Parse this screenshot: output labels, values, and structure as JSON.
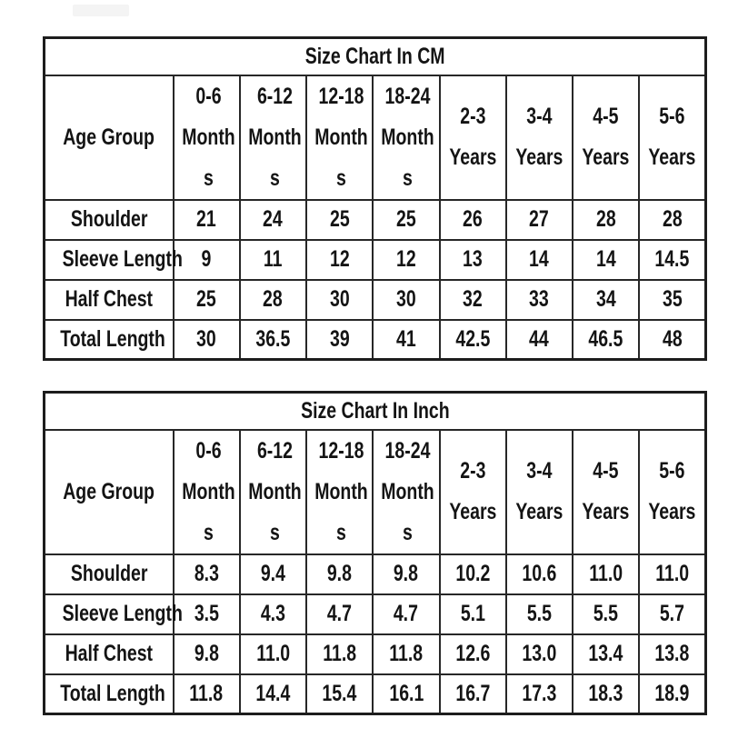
{
  "colors": {
    "background": "#ffffff",
    "table_border": "#1d1d1d",
    "cell_border": "#272727",
    "text": "#141414",
    "watermark": "#f4f4f4"
  },
  "tables": [
    {
      "title": "Size Chart In CM",
      "corner_header": "Age Group",
      "col_headers": [
        "0-6\nMonth\ns",
        "6-12\nMonth\ns",
        "12-18\nMonth\ns",
        "18-24\nMonth\ns",
        "2-3\nYears",
        "3-4\nYears",
        "4-5\nYears",
        "5-6\nYears"
      ],
      "rows": [
        {
          "label": "Shoulder",
          "values": [
            "21",
            "24",
            "25",
            "25",
            "26",
            "27",
            "28",
            "28"
          ]
        },
        {
          "label": "Sleeve Length",
          "values": [
            "9",
            "11",
            "12",
            "12",
            "13",
            "14",
            "14",
            "14.5"
          ]
        },
        {
          "label": "Half Chest",
          "values": [
            "25",
            "28",
            "30",
            "30",
            "32",
            "33",
            "34",
            "35"
          ]
        },
        {
          "label": "Total Length",
          "values": [
            "30",
            "36.5",
            "39",
            "41",
            "42.5",
            "44",
            "46.5",
            "48"
          ]
        }
      ]
    },
    {
      "title": "Size Chart In Inch",
      "corner_header": "Age Group",
      "col_headers": [
        "0-6\nMonth\ns",
        "6-12\nMonth\ns",
        "12-18\nMonth\ns",
        "18-24\nMonth\ns",
        "2-3\nYears",
        "3-4\nYears",
        "4-5\nYears",
        "5-6\nYears"
      ],
      "rows": [
        {
          "label": "Shoulder",
          "values": [
            "8.3",
            "9.4",
            "9.8",
            "9.8",
            "10.2",
            "10.6",
            "11.0",
            "11.0"
          ]
        },
        {
          "label": "Sleeve Length",
          "values": [
            "3.5",
            "4.3",
            "4.7",
            "4.7",
            "5.1",
            "5.5",
            "5.5",
            "5.7"
          ]
        },
        {
          "label": "Half Chest",
          "values": [
            "9.8",
            "11.0",
            "11.8",
            "11.8",
            "12.6",
            "13.0",
            "13.4",
            "13.8"
          ]
        },
        {
          "label": "Total Length",
          "values": [
            "11.8",
            "14.4",
            "15.4",
            "16.1",
            "16.7",
            "17.3",
            "18.3",
            "18.9"
          ]
        }
      ]
    }
  ]
}
